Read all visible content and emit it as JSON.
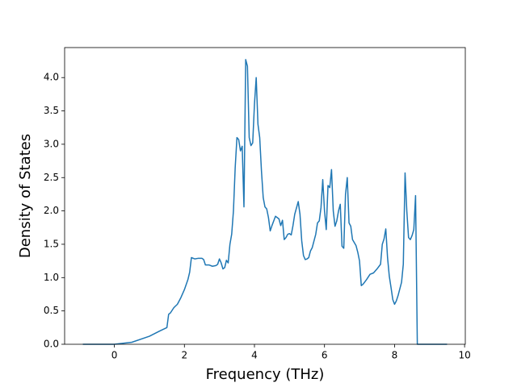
{
  "chart_data": {
    "type": "line",
    "x_label": "Frequency (THz)",
    "y_label": "Density of States",
    "color": "#1f77b4",
    "xlim": [
      -1.42,
      10.02
    ],
    "ylim": [
      0,
      4.45
    ],
    "xticks": [
      0,
      2,
      4,
      6,
      8,
      10
    ],
    "yticks": [
      {
        "value": 0,
        "label": "0.0"
      },
      0.5,
      {
        "value": 1,
        "label": "1.0"
      },
      1.5,
      {
        "value": 2,
        "label": "2.0"
      },
      2.5,
      {
        "value": 3,
        "label": "3.0"
      },
      3.5,
      {
        "value": 4,
        "label": "4.0"
      }
    ],
    "x": [
      -0.9,
      0,
      0.5,
      1.0,
      1.3,
      1.5,
      1.55,
      1.6,
      1.7,
      1.8,
      1.9,
      2.0,
      2.1,
      2.15,
      2.2,
      2.3,
      2.4,
      2.5,
      2.55,
      2.6,
      2.7,
      2.8,
      2.9,
      2.95,
      3.0,
      3.05,
      3.1,
      3.15,
      3.2,
      3.25,
      3.3,
      3.35,
      3.4,
      3.45,
      3.5,
      3.55,
      3.6,
      3.65,
      3.7,
      3.75,
      3.8,
      3.85,
      3.9,
      3.95,
      4.0,
      4.05,
      4.1,
      4.15,
      4.2,
      4.25,
      4.3,
      4.35,
      4.4,
      4.45,
      4.5,
      4.6,
      4.7,
      4.75,
      4.8,
      4.85,
      4.9,
      4.95,
      5.0,
      5.05,
      5.1,
      5.15,
      5.25,
      5.3,
      5.35,
      5.4,
      5.45,
      5.5,
      5.55,
      5.6,
      5.65,
      5.7,
      5.75,
      5.8,
      5.85,
      5.9,
      5.95,
      6.0,
      6.05,
      6.1,
      6.15,
      6.2,
      6.25,
      6.3,
      6.35,
      6.4,
      6.45,
      6.5,
      6.55,
      6.6,
      6.65,
      6.7,
      6.75,
      6.8,
      6.9,
      6.95,
      7.0,
      7.05,
      7.1,
      7.2,
      7.3,
      7.4,
      7.5,
      7.6,
      7.65,
      7.7,
      7.75,
      7.8,
      7.85,
      7.9,
      7.95,
      8.0,
      8.05,
      8.1,
      8.2,
      8.25,
      8.3,
      8.35,
      8.4,
      8.45,
      8.5,
      8.55,
      8.6,
      8.65,
      9.5
    ],
    "values": [
      0,
      0,
      0.03,
      0.12,
      0.2,
      0.25,
      0.45,
      0.47,
      0.55,
      0.6,
      0.7,
      0.82,
      0.97,
      1.08,
      1.3,
      1.28,
      1.29,
      1.29,
      1.27,
      1.19,
      1.19,
      1.17,
      1.18,
      1.2,
      1.28,
      1.22,
      1.13,
      1.15,
      1.26,
      1.22,
      1.5,
      1.65,
      2.0,
      2.65,
      3.1,
      3.07,
      2.9,
      2.97,
      2.06,
      4.27,
      4.17,
      3.1,
      2.98,
      3.02,
      3.6,
      4.0,
      3.3,
      3.1,
      2.6,
      2.2,
      2.06,
      2.03,
      1.9,
      1.7,
      1.78,
      1.92,
      1.88,
      1.78,
      1.86,
      1.57,
      1.6,
      1.65,
      1.66,
      1.64,
      1.78,
      1.95,
      2.14,
      1.95,
      1.55,
      1.33,
      1.27,
      1.28,
      1.3,
      1.4,
      1.45,
      1.55,
      1.65,
      1.82,
      1.85,
      2.05,
      2.47,
      2.0,
      1.72,
      2.38,
      2.35,
      2.62,
      2.0,
      1.77,
      1.85,
      2.0,
      2.1,
      1.47,
      1.44,
      2.25,
      2.5,
      1.82,
      1.77,
      1.57,
      1.48,
      1.38,
      1.25,
      0.88,
      0.9,
      0.97,
      1.05,
      1.07,
      1.13,
      1.2,
      1.5,
      1.58,
      1.73,
      1.3,
      1.02,
      0.85,
      0.67,
      0.6,
      0.65,
      0.73,
      0.93,
      1.2,
      2.57,
      2.0,
      1.6,
      1.57,
      1.63,
      1.72,
      2.23,
      0,
      0
    ]
  }
}
